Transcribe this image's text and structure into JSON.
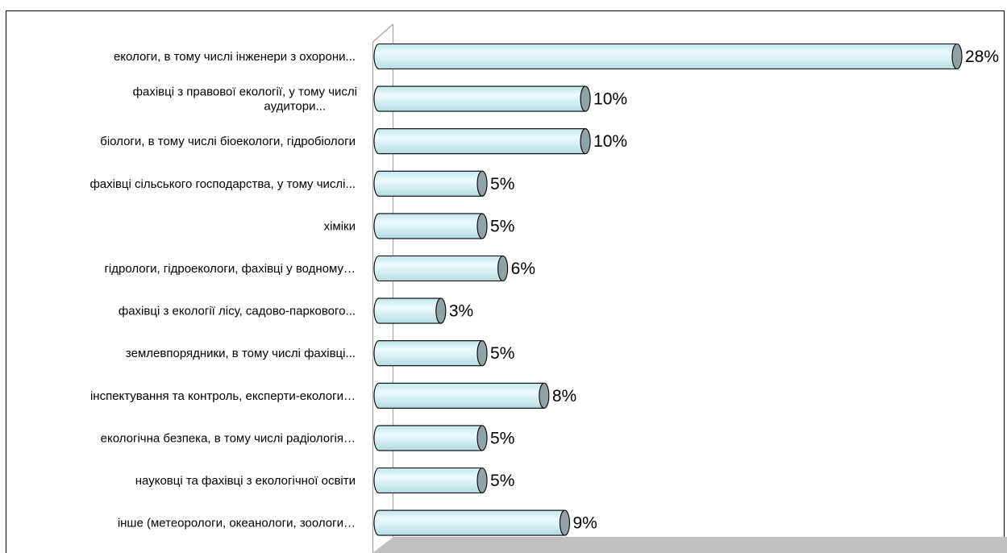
{
  "chart_data": {
    "type": "bar",
    "orientation": "horizontal",
    "categories": [
      [
        "екологи, в тому числі інженери з охорони..."
      ],
      [
        "фахівці з правової екології, у тому числі",
        "аудитори..."
      ],
      [
        "біологи, в тому числі біоекологи, гідробіологи"
      ],
      [
        "фахівці сільського господарства, у тому числі..."
      ],
      [
        "хіміки"
      ],
      [
        "гідрологи, гідроекологи, фахівці у водному…"
      ],
      [
        "фахівці з екології лісу, садово-паркового..."
      ],
      [
        "землевпорядники, в тому числі фахівці..."
      ],
      [
        "інспектування та контроль, експерти-екологи…"
      ],
      [
        "екологічна безпека, в тому числі радіологія…"
      ],
      [
        "науковці та фахівці з екологічної освіти"
      ],
      [
        "інше (метеорологи, океанологи, зоологи…"
      ]
    ],
    "values": [
      28,
      10,
      10,
      5,
      5,
      6,
      3,
      5,
      8,
      5,
      5,
      9
    ],
    "value_labels": [
      "28%",
      "10%",
      "10%",
      "5%",
      "5%",
      "6%",
      "3%",
      "5%",
      "8%",
      "5%",
      "5%",
      "9%"
    ],
    "unit": "%",
    "xlim": [
      0,
      28
    ],
    "grid": false,
    "legend": "none",
    "style": "3d-cylinder",
    "colors": {
      "bar_fill": "#d8f4f8",
      "bar_end": "#8fa2a6",
      "floor": "#c0c0c0",
      "wall_line": "#a6a6a6",
      "outline": "#000000"
    }
  }
}
